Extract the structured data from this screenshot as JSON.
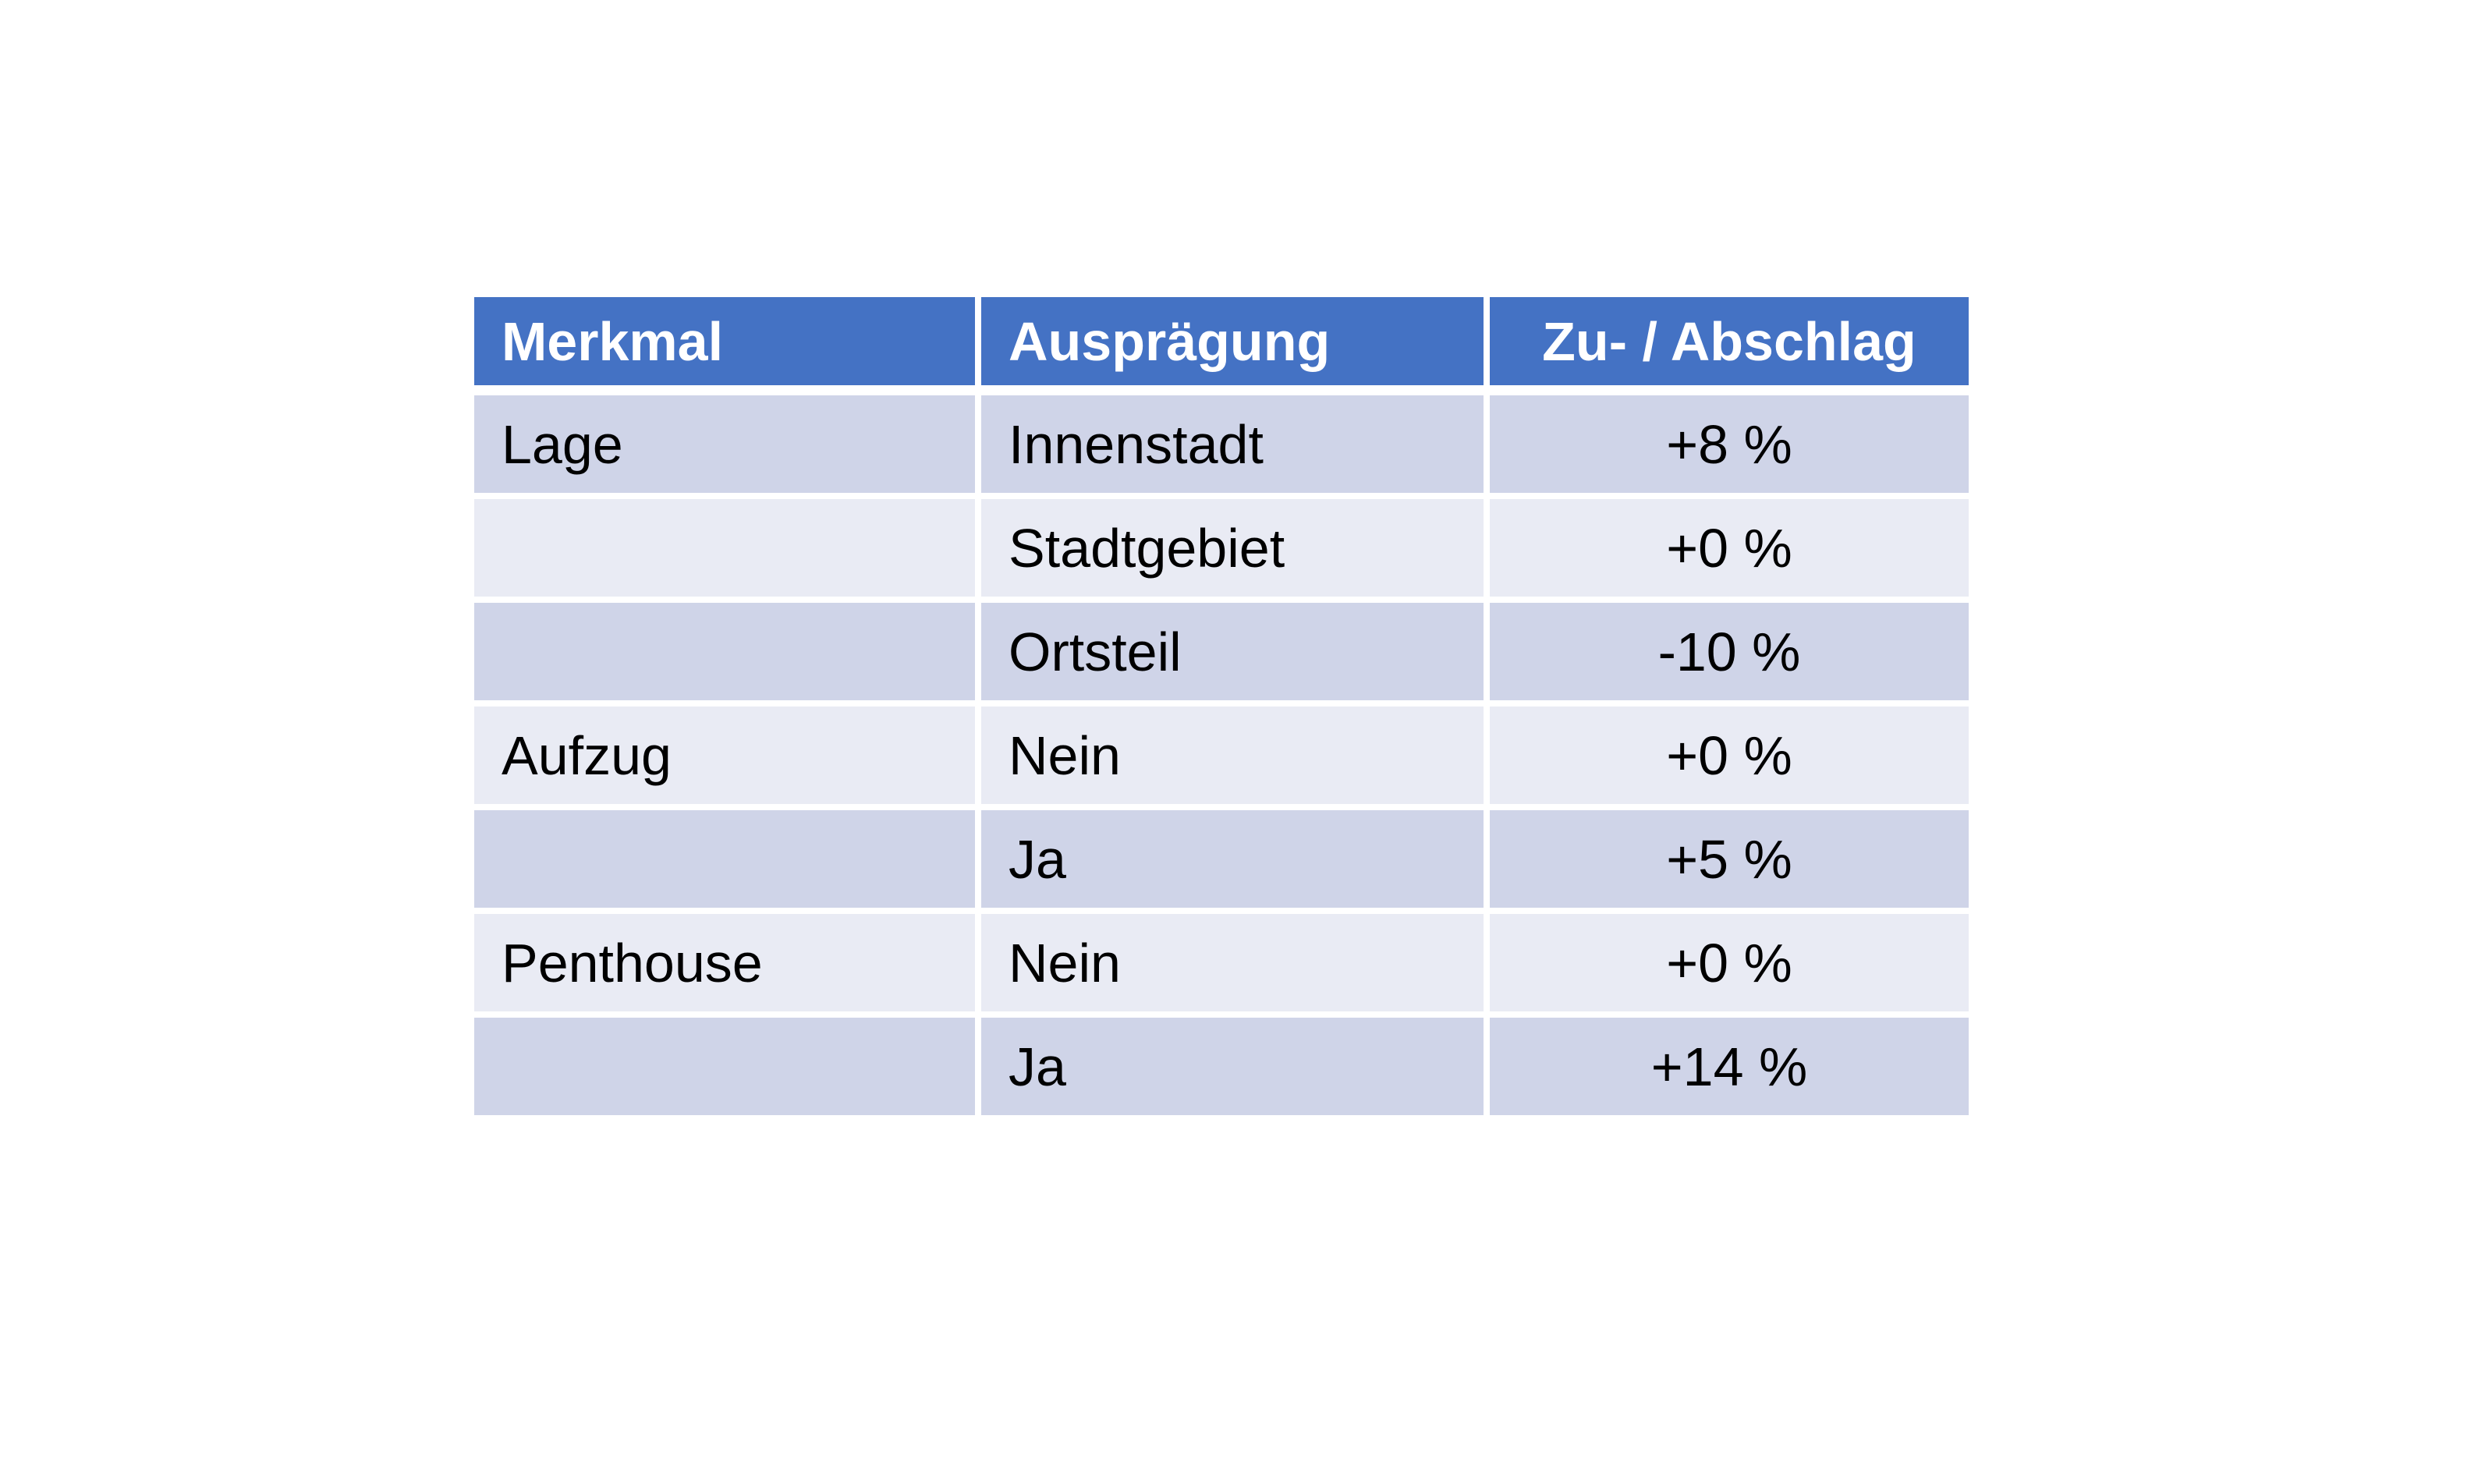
{
  "page": {
    "background": "#FFFFFF"
  },
  "table": {
    "columns": [
      {
        "label": "Merkmal",
        "align": "left"
      },
      {
        "label": "Ausprägung",
        "align": "left"
      },
      {
        "label": "Zu- / Abschlag",
        "align": "center"
      }
    ],
    "rows": [
      [
        "Lage",
        "Innenstadt",
        "+8 %"
      ],
      [
        "",
        "Stadtgebiet",
        "+0 %"
      ],
      [
        "",
        "Ortsteil",
        "-10 %"
      ],
      [
        "Aufzug",
        "Nein",
        "+0 %"
      ],
      [
        "",
        "Ja",
        "+5 %"
      ],
      [
        "Penthouse",
        "Nein",
        "+0 %"
      ],
      [
        "",
        "Ja",
        "+14 %"
      ]
    ],
    "colors": {
      "header_bg": "#4472C4",
      "header_text": "#FFFFFF",
      "band_dark": "#CFD4E8",
      "band_light": "#E9EBF4",
      "body_text": "#000000",
      "border": "#FFFFFF"
    }
  }
}
